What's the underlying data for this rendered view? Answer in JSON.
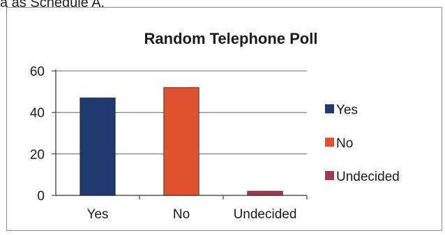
{
  "header_fragment": "a as Schedule A.",
  "chart_data": {
    "type": "bar",
    "title": "Random Telephone Poll",
    "categories": [
      "Yes",
      "No",
      "Undecided"
    ],
    "values": [
      47,
      52,
      2
    ],
    "colors": [
      "#1f3a6e",
      "#e0532e",
      "#a03a4e"
    ],
    "ylim": [
      0,
      60
    ],
    "yticks": [
      0,
      20,
      40,
      60
    ],
    "grid": true,
    "legend": {
      "position": "right",
      "entries": [
        "Yes",
        "No",
        "Undecided"
      ]
    }
  }
}
